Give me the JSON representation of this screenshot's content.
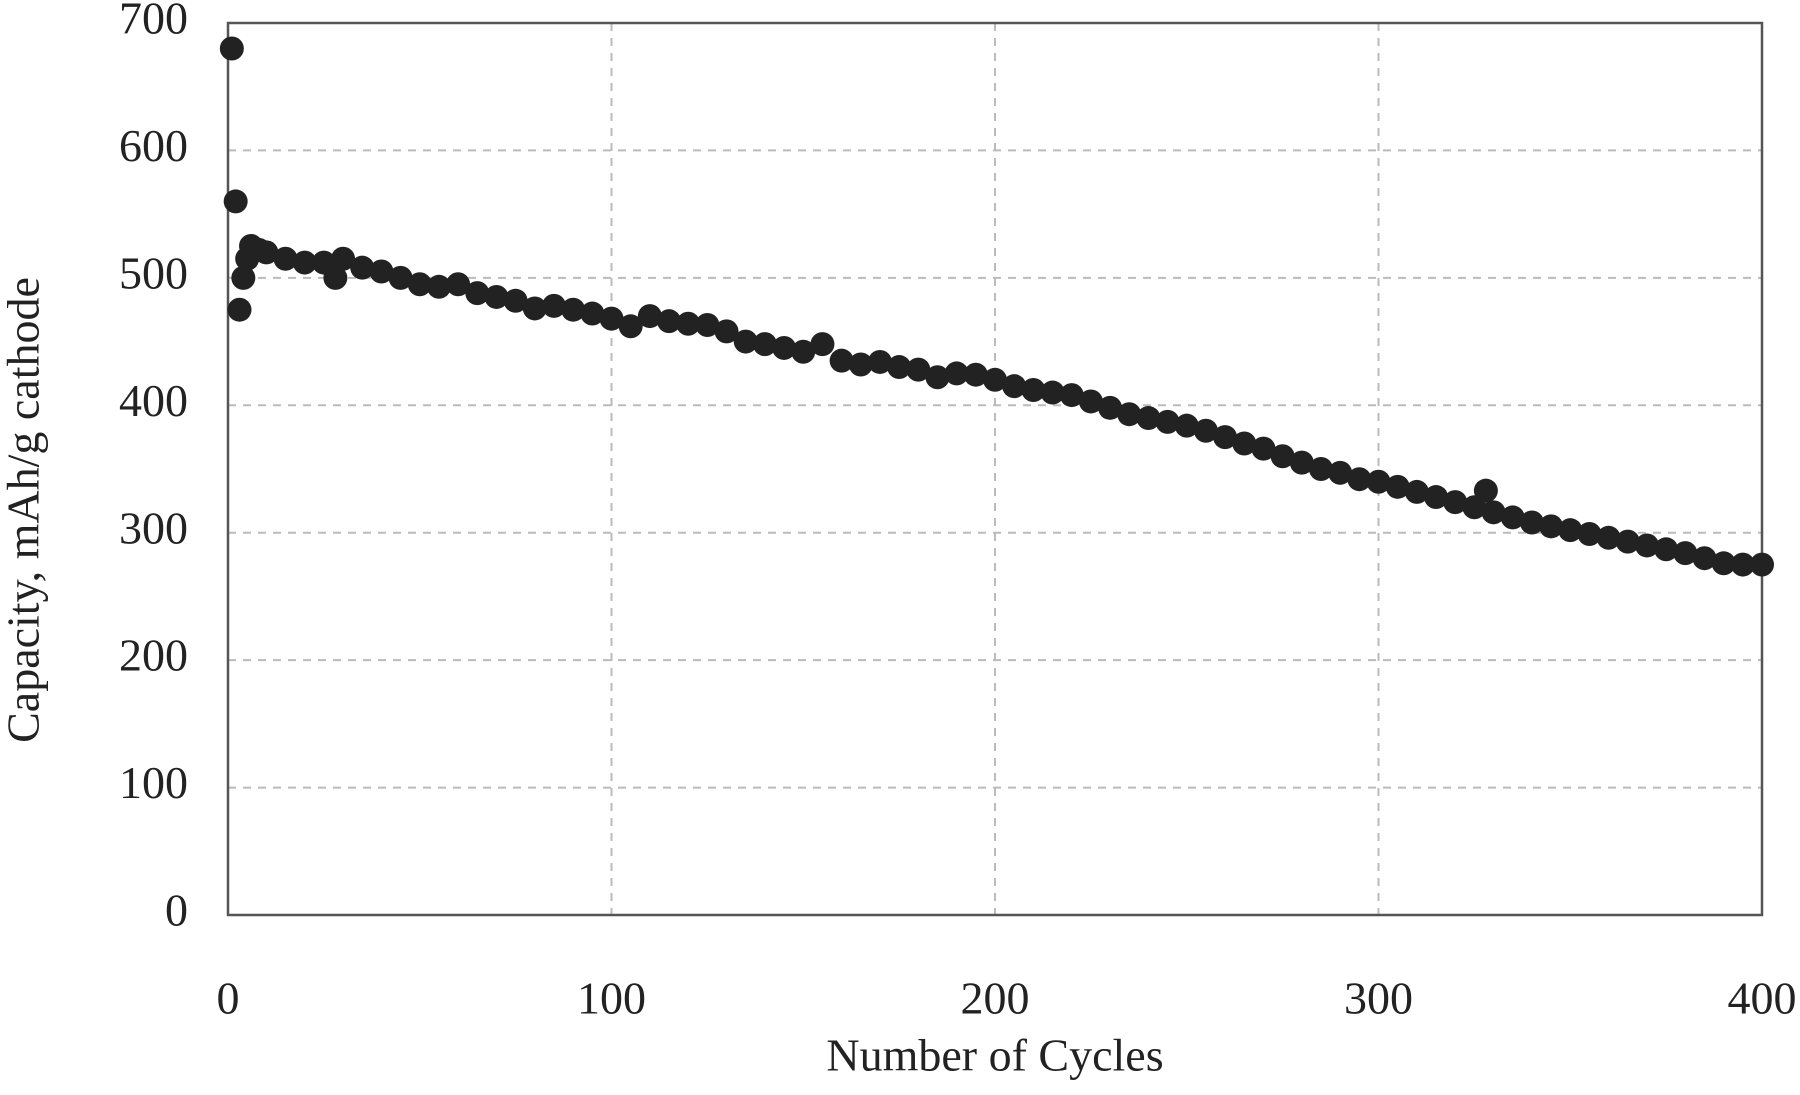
{
  "chart_data": {
    "type": "scatter",
    "xlabel": "Number of Cycles",
    "ylabel": "Capacity, mAh/g cathode",
    "color": "#222222",
    "grid": true,
    "xlim": [
      0,
      400
    ],
    "xticks": [
      0,
      100,
      200,
      300,
      400
    ],
    "ylim": [
      0,
      700
    ],
    "yticks": [
      0,
      100,
      200,
      300,
      400,
      500,
      600,
      700
    ],
    "x": [
      1,
      2,
      3,
      4,
      5,
      6,
      8,
      10,
      15,
      20,
      25,
      28,
      30,
      35,
      40,
      45,
      50,
      55,
      60,
      65,
      70,
      75,
      80,
      85,
      90,
      95,
      100,
      105,
      110,
      115,
      120,
      125,
      130,
      135,
      140,
      145,
      150,
      155,
      160,
      165,
      170,
      175,
      180,
      185,
      190,
      195,
      200,
      205,
      210,
      215,
      220,
      225,
      230,
      235,
      240,
      245,
      250,
      255,
      260,
      265,
      270,
      275,
      280,
      285,
      290,
      295,
      300,
      305,
      310,
      315,
      320,
      325,
      328,
      330,
      335,
      340,
      345,
      350,
      355,
      360,
      365,
      370,
      375,
      380,
      385,
      390,
      395,
      400
    ],
    "values": [
      680,
      560,
      475,
      500,
      515,
      525,
      522,
      520,
      515,
      512,
      512,
      500,
      515,
      508,
      505,
      500,
      495,
      493,
      495,
      488,
      485,
      482,
      476,
      478,
      475,
      472,
      468,
      462,
      470,
      466,
      464,
      463,
      458,
      450,
      448,
      445,
      442,
      448,
      435,
      432,
      434,
      430,
      428,
      422,
      425,
      424,
      420,
      415,
      412,
      410,
      408,
      403,
      398,
      393,
      390,
      387,
      384,
      380,
      375,
      370,
      366,
      360,
      355,
      350,
      347,
      342,
      340,
      336,
      332,
      328,
      324,
      320,
      333,
      316,
      312,
      308,
      305,
      302,
      299,
      296,
      293,
      290,
      287,
      284,
      280,
      276,
      275,
      275
    ]
  }
}
